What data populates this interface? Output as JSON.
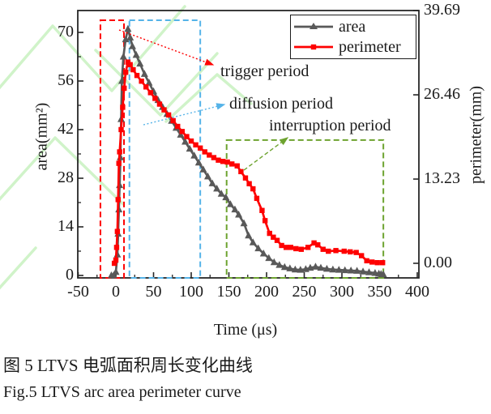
{
  "watermark_color": "#ccf2c4",
  "chart_data": {
    "type": "line",
    "title": "",
    "xlabel": "Time (μs)",
    "ylabel_left": "area(mm²)",
    "ylabel_right": "perimeter(mm)",
    "x_ticks": [
      -50,
      0,
      50,
      100,
      150,
      200,
      250,
      300,
      350,
      400
    ],
    "x_minor_step": 25,
    "x_range": [
      -50,
      402
    ],
    "y_left_ticks": [
      0,
      14,
      28,
      42,
      56,
      70
    ],
    "y_left_range": [
      -0.7,
      77
    ],
    "y_right_tick_labels": [
      "0.00",
      "13.23",
      "26.46",
      "39.69"
    ],
    "y_right_tick_values": [
      0,
      13.23,
      26.46,
      39.69
    ],
    "grid": false,
    "legend_position": "top-right",
    "series": [
      {
        "name": "area",
        "axis": "left",
        "unit": "mm²",
        "color": "#595959",
        "marker": "triangle",
        "points": [
          [
            -6,
            0
          ],
          [
            -3,
            0
          ],
          [
            0,
            1
          ],
          [
            2,
            6
          ],
          [
            3,
            12
          ],
          [
            4,
            19
          ],
          [
            5,
            26
          ],
          [
            6,
            34
          ],
          [
            7,
            45
          ],
          [
            8,
            56
          ],
          [
            10,
            63
          ],
          [
            13,
            68
          ],
          [
            16,
            71
          ],
          [
            19,
            68.5
          ],
          [
            22,
            66
          ],
          [
            27,
            63.5
          ],
          [
            32,
            61
          ],
          [
            38,
            58
          ],
          [
            44,
            55.5
          ],
          [
            50,
            53
          ],
          [
            56,
            50.5
          ],
          [
            62,
            48.5
          ],
          [
            68,
            46.5
          ],
          [
            74,
            44.5
          ],
          [
            80,
            42.5
          ],
          [
            86,
            40.5
          ],
          [
            92,
            38.5
          ],
          [
            98,
            36.5
          ],
          [
            104,
            34.5
          ],
          [
            110,
            32.5
          ],
          [
            116,
            30.5
          ],
          [
            122,
            28.5
          ],
          [
            128,
            26.5
          ],
          [
            134,
            25
          ],
          [
            140,
            23.5
          ],
          [
            146,
            22.5
          ],
          [
            152,
            20.5
          ],
          [
            158,
            19
          ],
          [
            163,
            17.5
          ],
          [
            170,
            15
          ],
          [
            176,
            11.5
          ],
          [
            182,
            9.5
          ],
          [
            189,
            7.8
          ],
          [
            196,
            6.3
          ],
          [
            203,
            5
          ],
          [
            210,
            3.8
          ],
          [
            217,
            3
          ],
          [
            224,
            2.4
          ],
          [
            231,
            2
          ],
          [
            238,
            1.7
          ],
          [
            245,
            1.6
          ],
          [
            252,
            1.8
          ],
          [
            258,
            2.2
          ],
          [
            265,
            2.5
          ],
          [
            272,
            2.2
          ],
          [
            280,
            1.9
          ],
          [
            288,
            1.7
          ],
          [
            296,
            1.6
          ],
          [
            304,
            1.5
          ],
          [
            312,
            1.4
          ],
          [
            320,
            1.3
          ],
          [
            328,
            1.1
          ],
          [
            336,
            0.9
          ],
          [
            344,
            0.7
          ],
          [
            349,
            0.5
          ],
          [
            352,
            0.4
          ],
          [
            355,
            0.3
          ]
        ]
      },
      {
        "name": "perimeter",
        "axis": "right",
        "unit": "mm",
        "color": "#fe0000",
        "marker": "square",
        "points": [
          [
            -2,
            0
          ],
          [
            0,
            0.5
          ],
          [
            1,
            2.5
          ],
          [
            2,
            5
          ],
          [
            3,
            10
          ],
          [
            4,
            15.7
          ],
          [
            5,
            17.5
          ],
          [
            7,
            21
          ],
          [
            9,
            24.5
          ],
          [
            11,
            27.5
          ],
          [
            13,
            30
          ],
          [
            16,
            31.6
          ],
          [
            19,
            31.2
          ],
          [
            23,
            30.4
          ],
          [
            28,
            29.5
          ],
          [
            34,
            28.6
          ],
          [
            40,
            27.7
          ],
          [
            46,
            26.8
          ],
          [
            52,
            25.9
          ],
          [
            58,
            25
          ],
          [
            64,
            24.1
          ],
          [
            70,
            23.3
          ],
          [
            76,
            22.4
          ],
          [
            82,
            21.5
          ],
          [
            88,
            20.7
          ],
          [
            94,
            19.9
          ],
          [
            100,
            19.2
          ],
          [
            106,
            18.6
          ],
          [
            112,
            18.1
          ],
          [
            118,
            17.5
          ],
          [
            124,
            17
          ],
          [
            130,
            16.6
          ],
          [
            136,
            16.2
          ],
          [
            142,
            16
          ],
          [
            148,
            15.9
          ],
          [
            154,
            15.6
          ],
          [
            161,
            15.3
          ],
          [
            166,
            14.4
          ],
          [
            172,
            13.4
          ],
          [
            177,
            12.5
          ],
          [
            182,
            11.7
          ],
          [
            187,
            10.2
          ],
          [
            194,
            8.3
          ],
          [
            198,
            6.7
          ],
          [
            204,
            4.7
          ],
          [
            209,
            4.1
          ],
          [
            214,
            3.6
          ],
          [
            220,
            2.8
          ],
          [
            226,
            2.5
          ],
          [
            232,
            2.5
          ],
          [
            239,
            2.3
          ],
          [
            246,
            2.2
          ],
          [
            255,
            2.5
          ],
          [
            263,
            3.2
          ],
          [
            268,
            2.9
          ],
          [
            275,
            2.2
          ],
          [
            282,
            1.9
          ],
          [
            292,
            2.0
          ],
          [
            303,
            1.9
          ],
          [
            311,
            1.8
          ],
          [
            319,
            1.7
          ],
          [
            326,
            1.2
          ],
          [
            333,
            0.4
          ],
          [
            340,
            0.2
          ],
          [
            347,
            0.1
          ],
          [
            354,
            0.1
          ]
        ]
      }
    ],
    "period_annotations": [
      {
        "label": "trigger period",
        "color": "#fe0000",
        "t_range": [
          -20.5,
          10.8
        ],
        "top_area_value": 73.5,
        "line_style": "dashed"
      },
      {
        "label": "diffusion period",
        "color": "#55b3e8",
        "t_range": [
          18,
          112
        ],
        "top_area_value": 73.5,
        "line_style": "dashed"
      },
      {
        "label": "interruption period",
        "color": "#6da32f",
        "t_range": [
          147,
          355
        ],
        "top_area_value": 39,
        "line_style": "dashed"
      }
    ]
  },
  "caption": {
    "line1": "图 5 LTVS 电弧面积周长变化曲线",
    "line2": "Fig.5 LTVS arc area perimeter curve"
  }
}
